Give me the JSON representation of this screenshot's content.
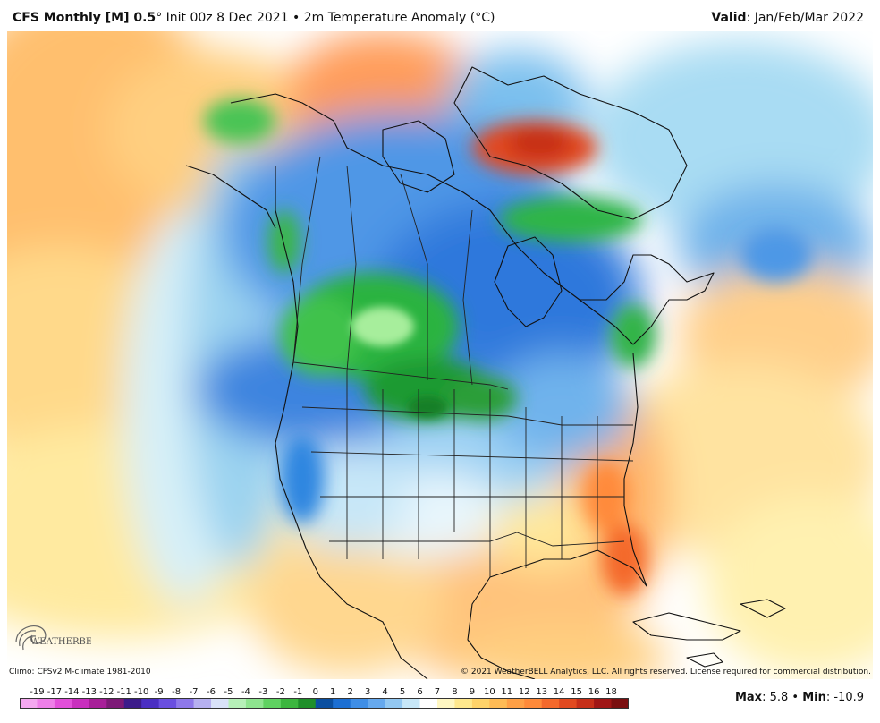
{
  "header": {
    "model": "CFS Monthly [M] 0.5",
    "rest": "° Init 00z 8 Dec 2021 • 2m Temperature Anomaly (°C)",
    "valid_label": "Valid",
    "valid_value": ": Jan/Feb/Mar 2022"
  },
  "footer": {
    "climo": "Climo: CFSv2 M-climate 1981-2010",
    "copyright": "© 2021 WeatherBELL Analytics, LLC. All rights reserved. License required for commercial distribution.",
    "max_label": "Max",
    "max_value": ": 5.8 • ",
    "min_label": "Min",
    "min_value": ": -10.9"
  },
  "logo_text": "WEATHERBELL",
  "colorbar": {
    "ticks": [
      "-19",
      "-17",
      "-14",
      "-13",
      "-12",
      "-11",
      "-10",
      "-9",
      "-8",
      "-7",
      "-6",
      "-5",
      "-4",
      "-3",
      "-2",
      "-1",
      "0",
      "1",
      "2",
      "3",
      "4",
      "5",
      "6",
      "7",
      "8",
      "9",
      "10",
      "11",
      "12",
      "13",
      "14",
      "15",
      "16",
      "18"
    ],
    "colors": [
      "#f5a8f0",
      "#ee7fe8",
      "#e24fd9",
      "#c92fbe",
      "#a81f99",
      "#7d1a77",
      "#3c1c8a",
      "#4b2fc3",
      "#6a4fe0",
      "#8e78ea",
      "#b6b0f0",
      "#d9e2f8",
      "#b6f0b8",
      "#8ee48f",
      "#5fd261",
      "#3cb63f",
      "#1f8f2a",
      "#0b4fa0",
      "#1c6fd3",
      "#3f8ee6",
      "#66a9ee",
      "#93c8f2",
      "#c7e7f8",
      "#ffffff",
      "#fff7c2",
      "#ffe88d",
      "#ffd36a",
      "#ffbb55",
      "#ffa046",
      "#ff8a3a",
      "#f4692c",
      "#e14a20",
      "#c62f19",
      "#a01616",
      "#7a0f10"
    ]
  },
  "map": {
    "region": "North America",
    "features": [
      "warm anomaly over eastern US and Gulf",
      "cold anomaly over western Canada and northern Plains",
      "warm anomaly over northern Greenland"
    ]
  }
}
